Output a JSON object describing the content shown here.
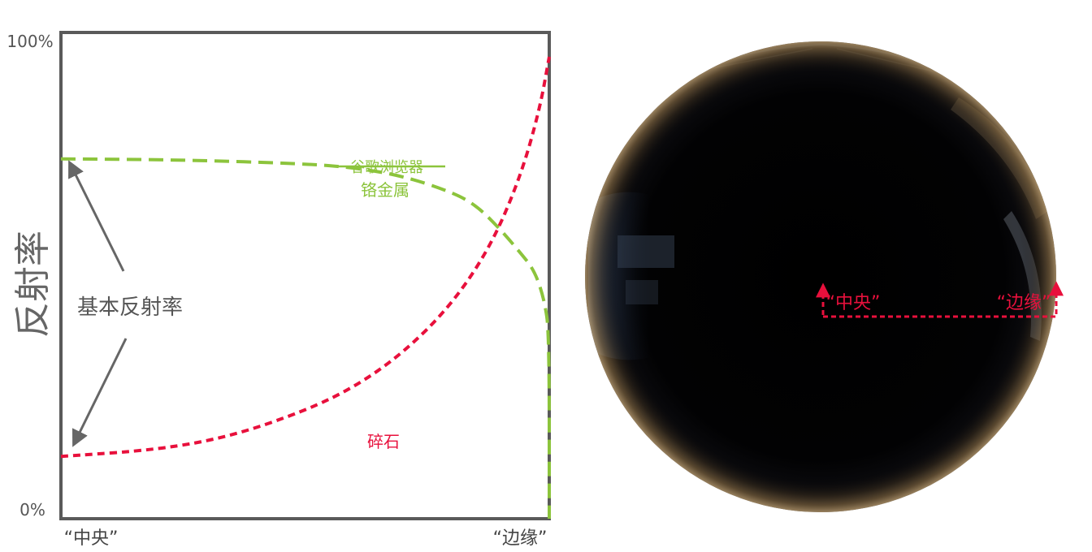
{
  "chart_data": {
    "type": "line",
    "ylabel": "反射率",
    "x_tick_labels": [
      "“中央”",
      "“边缘”"
    ],
    "y_tick_labels": [
      "100%",
      "0%"
    ],
    "ylim": [
      0,
      100
    ],
    "xlim": [
      0,
      1
    ],
    "annotation": "基本反射率",
    "series": [
      {
        "name": "铬金属",
        "struck_label": "谷歌浏览器",
        "color": "#8cc43c",
        "dash": "long",
        "points": [
          [
            0,
            74
          ],
          [
            0.25,
            73.8
          ],
          [
            0.5,
            73
          ],
          [
            0.6,
            72.2
          ],
          [
            0.7,
            70.5
          ],
          [
            0.8,
            67.2
          ],
          [
            0.85,
            64.5
          ],
          [
            0.9,
            59.5
          ],
          [
            0.94,
            54.8
          ],
          [
            0.97,
            51
          ],
          [
            0.99,
            45
          ],
          [
            1.0,
            38
          ],
          [
            1.0,
            0
          ]
        ]
      },
      {
        "name": "碎石",
        "color": "#e8103c",
        "dash": "short",
        "points": [
          [
            0,
            12.8
          ],
          [
            0.2,
            14.2
          ],
          [
            0.35,
            17
          ],
          [
            0.5,
            22.2
          ],
          [
            0.6,
            27
          ],
          [
            0.7,
            34
          ],
          [
            0.8,
            44
          ],
          [
            0.88,
            56
          ],
          [
            0.94,
            70
          ],
          [
            0.98,
            84
          ],
          [
            1.0,
            95
          ]
        ]
      }
    ]
  },
  "sphere": {
    "center_label": "“中央”",
    "edge_label": "“边缘”",
    "annotation_color": "#e8103c"
  }
}
